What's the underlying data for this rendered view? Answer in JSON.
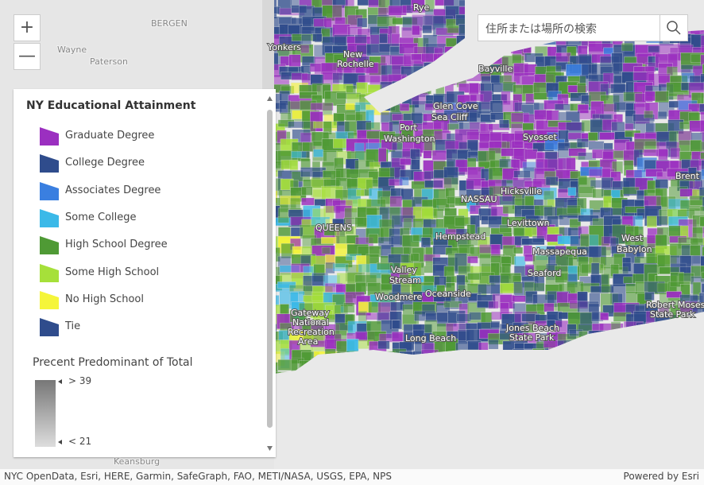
{
  "controls": {
    "zoom_in": "+",
    "zoom_out": "—",
    "search_placeholder": "住所または場所の検索"
  },
  "legend": {
    "title": "NY Educational Attainment",
    "items": [
      {
        "label": "Graduate Degree",
        "color": "#9b2fc0"
      },
      {
        "label": "College Degree",
        "color": "#2f4c8c"
      },
      {
        "label": "Associates Degree",
        "color": "#3a7fe0"
      },
      {
        "label": "Some College",
        "color": "#3bb9e8"
      },
      {
        "label": "High School Degree",
        "color": "#4f9a35"
      },
      {
        "label": "Some High School",
        "color": "#a6e03a"
      },
      {
        "label": "No High School",
        "color": "#f5f53a"
      },
      {
        "label": "Tie",
        "color": "#2f4c8c"
      }
    ],
    "size_title": "Precent Predominant of Total",
    "ramp_high": "> 39",
    "ramp_low": "< 21"
  },
  "places": {
    "bergen": "BERGEN",
    "wayne": "Wayne",
    "paterson": "Paterson",
    "keansburg": "Keansburg",
    "rye": "Rye",
    "yonkers": "Yonkers",
    "new": "New",
    "rochelle": "Rochelle",
    "bayville": "Bayville",
    "glen_cove": "Glen Cove",
    "sea_cliff": "Sea Cliff",
    "port": "Port",
    "washington": "Washington",
    "syosset": "Syosset",
    "brentwood": "Brent",
    "hicksville": "Hicksville",
    "nassau": "NASSAU",
    "levittown": "Levittown",
    "queens": "QUEENS",
    "hempstead": "Hempstead",
    "west": "West",
    "babylon": "Babylon",
    "massapequa": "Massapequa",
    "valley": "Valley",
    "stream": "Stream",
    "seaford": "Seaford",
    "oceanside": "Oceanside",
    "woodmere": "Woodmere",
    "robert_moses": "Robert Moses",
    "state_park": "State Park",
    "gateway": "Gateway",
    "national": "National",
    "recreation": "Recreation",
    "area": "Area",
    "jones_beach": "Jones Beach",
    "jones_park": "State Park",
    "long_beach": "Long Beach"
  },
  "footer": {
    "attribution": "NYC OpenData, Esri, HERE, Garmin, SafeGraph, FAO, METI/NASA, USGS, EPA, NPS",
    "powered_by": "Powered by Esri"
  }
}
